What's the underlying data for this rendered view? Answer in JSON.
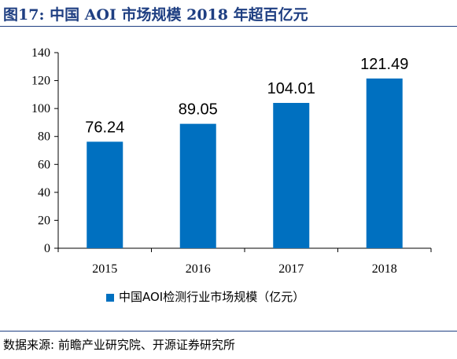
{
  "figure": {
    "title": "图17:  中国 AOI 市场规模 2018 年超百亿元",
    "source": "数据来源:  前瞻产业研究院、开源证券研究所"
  },
  "chart_data": {
    "type": "bar",
    "categories": [
      "2015",
      "2016",
      "2017",
      "2018"
    ],
    "series": [
      {
        "name": "中国AOI检测行业市场规模（亿元）",
        "values": [
          76.24,
          89.05,
          104.01,
          121.49
        ],
        "color": "#0070C0"
      }
    ],
    "data_labels": [
      "76.24",
      "89.05",
      "104.01",
      "121.49"
    ],
    "ylim": [
      0,
      140
    ],
    "yticks": [
      "0",
      "20",
      "40",
      "60",
      "80",
      "100",
      "120",
      "140"
    ],
    "grid": false,
    "legend": "bottom"
  }
}
